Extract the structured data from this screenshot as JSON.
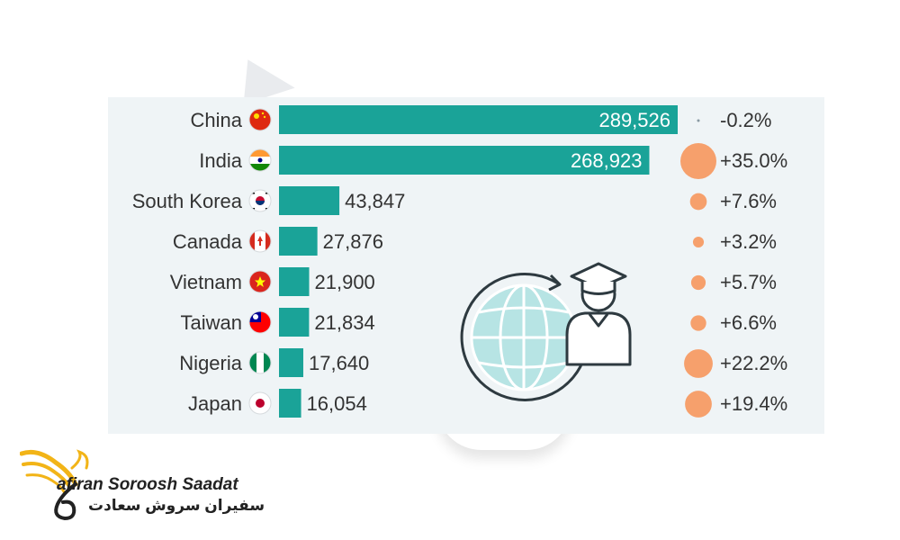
{
  "chart_data": {
    "type": "bar",
    "orientation": "horizontal",
    "categories": [
      "China",
      "India",
      "South Korea",
      "Canada",
      "Vietnam",
      "Taiwan",
      "Nigeria",
      "Japan"
    ],
    "values": [
      289526,
      268923,
      43847,
      27876,
      21900,
      21834,
      17640,
      16054
    ],
    "value_labels": [
      "289,526",
      "268,923",
      "43,847",
      "27,876",
      "21,900",
      "21,834",
      "17,640",
      "16,054"
    ],
    "change_values": [
      -0.2,
      35.0,
      7.6,
      3.2,
      5.7,
      6.6,
      22.2,
      19.4
    ],
    "change_labels": [
      "-0.2%",
      "+35.0%",
      "+7.6%",
      "+3.2%",
      "+5.7%",
      "+6.6%",
      "+22.2%",
      "+19.4%"
    ],
    "flags": [
      "china-flag-icon",
      "india-flag-icon",
      "south-korea-flag-icon",
      "canada-flag-icon",
      "vietnam-flag-icon",
      "taiwan-flag-icon",
      "nigeria-flag-icon",
      "japan-flag-icon"
    ],
    "xlim": [
      0,
      289526
    ],
    "grid": false,
    "legend": "none"
  },
  "colors": {
    "bar": "#1aa398",
    "bubble": "#f6a06c",
    "panel": "#eff4f6",
    "text": "#333333",
    "inside_label": "#ffffff",
    "logo_gold": "#f2b417"
  },
  "illustration": {
    "icon": "globe-graduate-icon"
  },
  "brand": {
    "name_en": "afiran Soroosh Saadat",
    "name_fa": "سفیران سروش سعادت",
    "icon": "phoenix-logo-icon"
  }
}
